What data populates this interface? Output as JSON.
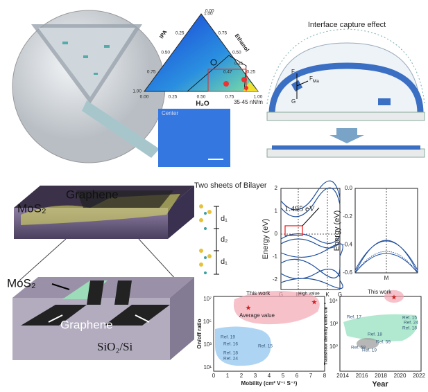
{
  "ternary": {
    "axis_labels": [
      "IPA",
      "Ethanol",
      "H₂O"
    ],
    "left_ticks": [
      "0.25",
      "0.50",
      "0.75",
      "1.00"
    ],
    "bottom_ticks": [
      "0.00",
      "0.25",
      "0.50",
      "0.75",
      "1.00"
    ],
    "right_ticks": [
      "0.25",
      "0.50",
      "0.75",
      "1.00"
    ],
    "top_tick": "0.00",
    "contours": [
      "0.47",
      "0.41"
    ],
    "range_label": "35-45 nN/m"
  },
  "micrograph": {
    "label": "Center"
  },
  "interface": {
    "title": "Interface capture effect",
    "forces": [
      "F",
      "G"
    ],
    "marangoni": {
      "symbol": "F",
      "subscript": "Ma"
    }
  },
  "device": {
    "top_labels": [
      "Graphene",
      "MoS₂"
    ],
    "bottom_labels": [
      "MoS₂",
      "Graphene",
      "SiO₂/Si"
    ]
  },
  "bilayer": {
    "title": "Two sheets of Bilayer",
    "spacings": [
      "d₁",
      "d₂",
      "d₁"
    ]
  },
  "band_structure": {
    "y_label": "Energy (eV)",
    "yticks": [
      "2",
      "1",
      "0",
      "-1",
      "-2"
    ],
    "gap": "1.495 eV",
    "kpoints": [
      "G",
      "M",
      "K",
      "G"
    ]
  },
  "band_zoom": {
    "y_label": "Energy (eV)",
    "yticks": [
      "0.0",
      "-0.2",
      "-0.4",
      "-0.6"
    ],
    "kpoint": "M"
  },
  "onoff": {
    "y_label": "On/off ratio",
    "yticks": [
      "10⁷",
      "10⁵",
      "10³",
      "10¹"
    ],
    "x_label": "Mobility (cm² V⁻¹ S⁻¹)",
    "xticks": [
      "0",
      "1",
      "2",
      "3",
      "4",
      "5",
      "6",
      "7",
      "8"
    ],
    "annotations": [
      "This work",
      "High value",
      "Average value"
    ],
    "refs": [
      "Ref. 19",
      "Ref. 16",
      "Ref. 18",
      "Ref. 24",
      "Ref. 15"
    ]
  },
  "density": {
    "y_label": "Transistor density units cm⁻²",
    "yticks": [
      "10⁴",
      "10²",
      "10⁰"
    ],
    "x_label": "Year",
    "xticks": [
      "2014",
      "2016",
      "2018",
      "2020",
      "2022"
    ],
    "annotations": [
      "This work"
    ],
    "refs": [
      "Ref. 17",
      "Ref. 15",
      "Ref. 24",
      "Ref. 18",
      "Ref. 18",
      "Ref. 59",
      "Ref. 58",
      "Ref. 19"
    ]
  }
}
